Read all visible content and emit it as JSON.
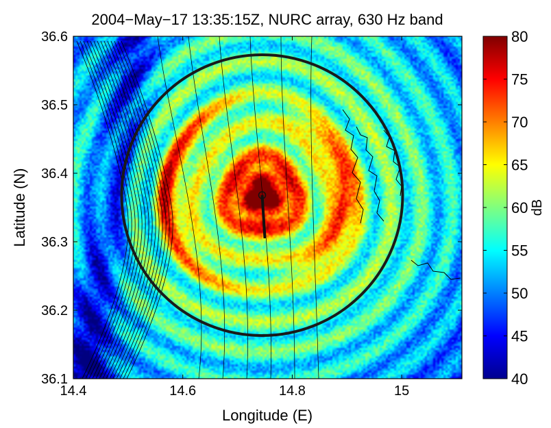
{
  "chart_data": {
    "type": "heatmap",
    "title": "2004−May−17 13:35:15Z, NURC array, 630 Hz band",
    "xlabel": "Longitude (E)",
    "ylabel": "Latitude (N)",
    "xlim": [
      14.4,
      15.11
    ],
    "ylim": [
      36.1,
      36.6
    ],
    "x_ticks": [
      14.4,
      14.6,
      14.8,
      15.0
    ],
    "x_tick_labels": [
      "14.4",
      "14.6",
      "14.8",
      "15"
    ],
    "y_ticks": [
      36.1,
      36.2,
      36.3,
      36.4,
      36.5,
      36.6
    ],
    "y_tick_labels": [
      "36.1",
      "36.2",
      "36.3",
      "36.4",
      "36.5",
      "36.6"
    ],
    "colorbar": {
      "label": "dB",
      "range": [
        40,
        80
      ],
      "ticks": [
        40,
        45,
        50,
        55,
        60,
        65,
        70,
        75,
        80
      ],
      "tick_labels": [
        "40",
        "45",
        "50",
        "55",
        "60",
        "65",
        "70",
        "75",
        "80"
      ],
      "colormap": "jet"
    },
    "array_center": {
      "lon": 14.745,
      "lat": 36.368
    },
    "array_heading_end": {
      "lon": 14.75,
      "lat": 36.305
    },
    "range_circle": {
      "center_lon": 14.745,
      "center_lat": 36.368,
      "radius_deg_lat": 0.205
    },
    "peak_level_db": 80,
    "background_level_db": 58
  }
}
